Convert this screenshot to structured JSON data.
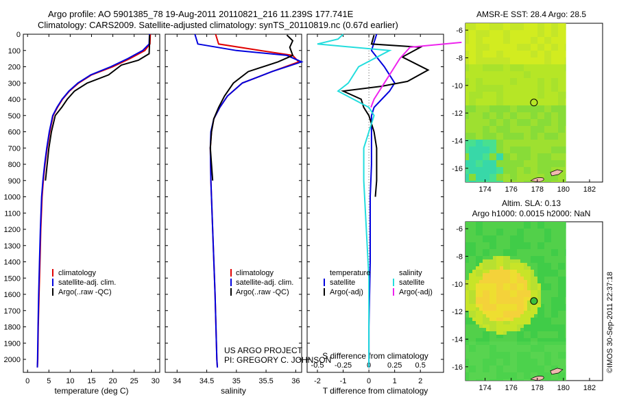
{
  "header": {
    "line1": "Argo profile: AO 5901385_78 19-Aug-2011 20110821_216 11.239S 177.741E",
    "line2": "Climatology: CARS2009. Satellite-adjusted climatology: synTS_20110819.nc (0.67d earlier)"
  },
  "colors": {
    "climatology": "#e00000",
    "satellite": "#0000dd",
    "argo": "#000000",
    "sat_salinity": "#22dddd",
    "argo_adj_salinity": "#ee22ee"
  },
  "chart_data": [
    {
      "type": "line",
      "panel": "temperature",
      "xlabel": "temperature (deg C)",
      "ylabel": "",
      "xlim": [
        -1,
        31
      ],
      "ylim": [
        2080,
        0
      ],
      "xticks": [
        0,
        5,
        10,
        15,
        20,
        25,
        30
      ],
      "yticks": [
        0,
        100,
        200,
        300,
        400,
        500,
        600,
        700,
        800,
        900,
        1000,
        1100,
        1200,
        1300,
        1400,
        1500,
        1600,
        1700,
        1800,
        1900,
        2000
      ],
      "legend": [
        "climatology",
        "satellite-adj. clim.",
        "Argo(..raw -QC)"
      ],
      "series": [
        {
          "name": "climatology",
          "color": "#e00000",
          "x": [
            28.8,
            28.7,
            27.5,
            24,
            20,
            15,
            12,
            9.8,
            8.2,
            7.0,
            6.0,
            5.2,
            4.6,
            4.1,
            3.7,
            3.4,
            3.1,
            2.9,
            2.7,
            2.5,
            2.4,
            2.3
          ],
          "y": [
            0,
            60,
            100,
            150,
            200,
            250,
            300,
            350,
            400,
            450,
            500,
            600,
            700,
            800,
            900,
            1000,
            1200,
            1400,
            1600,
            1800,
            2000,
            2050
          ]
        },
        {
          "name": "satellite-adj. clim.",
          "color": "#0000dd",
          "x": [
            28.6,
            28.5,
            27,
            23.5,
            19.5,
            14.8,
            11.8,
            9.7,
            8.1,
            6.9,
            5.9,
            5.1,
            4.5,
            4.0,
            3.6,
            3.3,
            3.0,
            2.8,
            2.6,
            2.45,
            2.35,
            2.3
          ],
          "y": [
            0,
            60,
            100,
            150,
            200,
            250,
            300,
            350,
            400,
            450,
            500,
            600,
            700,
            800,
            900,
            1000,
            1200,
            1400,
            1600,
            1800,
            2000,
            2050
          ]
        },
        {
          "name": "Argo(..raw -QC)",
          "color": "#000000",
          "x": [
            28.6,
            28.6,
            28.5,
            26,
            22,
            19,
            14,
            11,
            9.3,
            8.0,
            6.5,
            5.6,
            5.0,
            4.6,
            4.2
          ],
          "y": [
            5,
            60,
            120,
            160,
            190,
            250,
            300,
            350,
            400,
            450,
            500,
            600,
            700,
            800,
            900
          ]
        }
      ]
    },
    {
      "type": "line",
      "panel": "salinity",
      "xlabel": "salinity",
      "xlim": [
        33.8,
        36.1
      ],
      "ylim": [
        2080,
        0
      ],
      "xticks": [
        34,
        34.5,
        35,
        35.5,
        36
      ],
      "xtick_labels": [
        "34",
        "34.5",
        "35",
        "35.5",
        "36"
      ],
      "legend": [
        "climatology",
        "satellite-adj. clim.",
        "Argo(..raw -QC)"
      ],
      "series": [
        {
          "name": "climatology",
          "color": "#e00000",
          "x": [
            34.65,
            34.7,
            35.4,
            35.95,
            36.05,
            35.6,
            35.1,
            34.85,
            34.72,
            34.62,
            34.58,
            34.56,
            34.57,
            34.6,
            34.64,
            34.67,
            34.68
          ],
          "y": [
            0,
            60,
            100,
            130,
            170,
            230,
            300,
            380,
            450,
            520,
            600,
            700,
            900,
            1200,
            1600,
            2000,
            2050
          ]
        },
        {
          "name": "satellite-adj. clim.",
          "color": "#0000dd",
          "x": [
            34.3,
            34.35,
            35.0,
            35.85,
            36.1,
            35.6,
            35.1,
            34.85,
            34.72,
            34.62,
            34.57,
            34.56,
            34.57,
            34.6,
            34.64,
            34.67,
            34.68
          ],
          "y": [
            0,
            60,
            100,
            130,
            170,
            230,
            300,
            380,
            450,
            520,
            600,
            700,
            900,
            1200,
            1600,
            2000,
            2050
          ]
        },
        {
          "name": "Argo(..raw -QC)",
          "color": "#000000",
          "x": [
            35.85,
            35.95,
            35.9,
            35.95,
            35.7,
            35.2,
            34.95,
            34.8,
            34.7,
            34.62,
            34.58,
            34.56,
            34.6
          ],
          "y": [
            5,
            40,
            80,
            130,
            170,
            230,
            300,
            380,
            450,
            520,
            600,
            700,
            900
          ]
        }
      ]
    },
    {
      "type": "line",
      "panel": "difference",
      "xlabel": "T difference from climatology",
      "xlabel2": "S difference from climatology",
      "xlim": [
        -2.4,
        2.9
      ],
      "ylim": [
        2080,
        0
      ],
      "xticks": [
        -2,
        -1,
        0,
        1,
        2
      ],
      "xtick_labels": [
        "-2",
        "-1",
        "0",
        "1",
        "2"
      ],
      "x2ticks": [
        -0.5,
        -0.25,
        0,
        0.25,
        0.5
      ],
      "x2tick_labels": [
        "-0.5",
        "-0.25",
        "0",
        "0.25",
        "0.5"
      ],
      "legend_titles": [
        "temperature",
        "salinity"
      ],
      "legend": [
        "satellite",
        "Argo(-adj)",
        "satellite",
        "Argo(-adj)"
      ],
      "series": [
        {
          "name": "satellite",
          "group": "temperature",
          "color": "#0000dd",
          "x": [
            0.3,
            0.2,
            0.1,
            0.6,
            1.0,
            0.8,
            0.5,
            0.2,
            0.1,
            0.1,
            0.1,
            0.1,
            0.05,
            0.05,
            0.0,
            0.0
          ],
          "y": [
            0,
            50,
            100,
            200,
            300,
            350,
            400,
            450,
            500,
            600,
            700,
            800,
            1000,
            1400,
            1800,
            2050
          ]
        },
        {
          "name": "Argo(-adj)",
          "group": "temperature",
          "color": "#000000",
          "x": [
            0.2,
            0.1,
            2.0,
            1.3,
            2.3,
            1.5,
            0.5,
            -1.0,
            -0.3,
            -0.2,
            0.0,
            0.2,
            0.3,
            0.3,
            0.3,
            0.25
          ],
          "y": [
            5,
            60,
            80,
            140,
            220,
            290,
            320,
            350,
            400,
            450,
            500,
            600,
            700,
            800,
            900,
            1000
          ]
        },
        {
          "name": "satellite",
          "group": "salinity",
          "color": "#22dddd",
          "x": [
            -0.25,
            -0.3,
            -0.5,
            0.2,
            -0.1,
            -0.2,
            -0.3,
            0.0,
            0.05,
            0.0,
            -0.05,
            -0.05,
            0.0,
            0.0
          ],
          "y": [
            0,
            30,
            60,
            100,
            200,
            300,
            350,
            450,
            500,
            600,
            700,
            900,
            1500,
            2050
          ]
        },
        {
          "name": "Argo(-adj)",
          "group": "salinity",
          "color": "#ee22ee",
          "x": [
            0.9,
            0.4,
            0.3,
            0.2,
            0.15,
            0.1,
            0.05,
            0.02
          ],
          "y": [
            50,
            80,
            150,
            250,
            300,
            350,
            400,
            450
          ]
        }
      ]
    },
    {
      "type": "heatmap",
      "panel": "sst-map",
      "title": "AMSR-E SST: 28.4  Argo: 28.5",
      "xlim": [
        172.5,
        183
      ],
      "ylim": [
        -17,
        -5.5
      ],
      "xticks": [
        174,
        176,
        178,
        180,
        182
      ],
      "yticks": [
        -6,
        -8,
        -10,
        -12,
        -14,
        -16
      ],
      "argo_position": {
        "lon": 177.741,
        "lat": -11.239
      }
    },
    {
      "type": "heatmap",
      "panel": "sla-map",
      "title": "Altim. SLA: 0.13",
      "subtitle": "Argo h1000: 0.0015 h2000: NaN",
      "xlim": [
        172.5,
        183
      ],
      "ylim": [
        -17,
        -5.5
      ],
      "xticks": [
        174,
        176,
        178,
        180,
        182
      ],
      "yticks": [
        -6,
        -8,
        -10,
        -12,
        -14,
        -16
      ],
      "argo_position": {
        "lon": 177.741,
        "lat": -11.239
      }
    }
  ],
  "annotations": {
    "project_line1": "US ARGO PROJECT",
    "project_line2": "PI: GREGORY C. JOHNSON",
    "credit": "©IMOS 30-Sep-2011 22:37:18"
  }
}
